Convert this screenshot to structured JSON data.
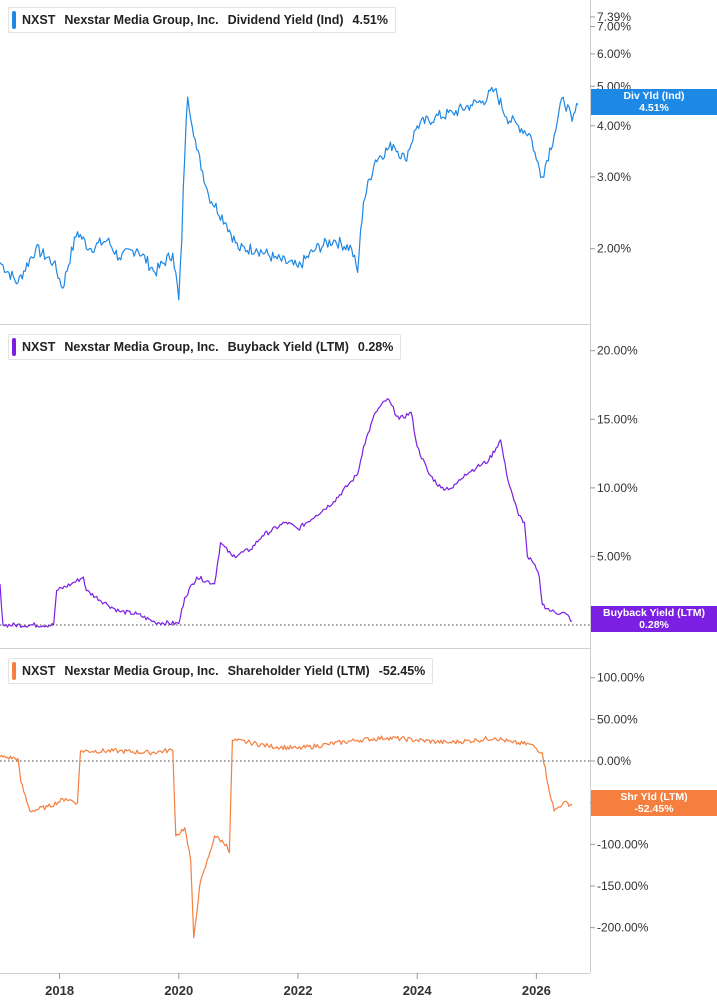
{
  "panels": [
    {
      "ticker": "NXST",
      "company": "Nexstar Media Group, Inc.",
      "metric": "Dividend Yield (Ind)",
      "value": "4.51%",
      "tag_line1": "Div Yld (Ind)",
      "tag_line2": "4.51%",
      "color": "#1e88e5"
    },
    {
      "ticker": "NXST",
      "company": "Nexstar Media Group, Inc.",
      "metric": "Buyback Yield (LTM)",
      "value": "0.28%",
      "tag_line1": "Buyback Yield (LTM)",
      "tag_line2": "0.28%",
      "color": "#7b1fe3"
    },
    {
      "ticker": "NXST",
      "company": "Nexstar Media Group, Inc.",
      "metric": "Shareholder Yield (LTM)",
      "value": "-52.45%",
      "tag_line1": "Shr Yld (LTM)",
      "tag_line2": "-52.45%",
      "color": "#f47f3e"
    }
  ],
  "chart_data": [
    {
      "type": "line",
      "scale": "log",
      "ylim": [
        1.4,
        7.6
      ],
      "yticks": [
        {
          "v": 7.39,
          "label": "7.39%"
        },
        {
          "v": 7.0,
          "label": "7.00%"
        },
        {
          "v": 6.0,
          "label": "6.00%"
        },
        {
          "v": 5.0,
          "label": "5.00%"
        },
        {
          "v": 4.0,
          "label": "4.00%"
        },
        {
          "v": 3.0,
          "label": "3.00%"
        },
        {
          "v": 2.0,
          "label": "2.00%"
        }
      ],
      "series": [
        {
          "values": [
            [
              2017.0,
              1.85
            ],
            [
              2017.3,
              1.65
            ],
            [
              2017.6,
              2.0
            ],
            [
              2017.9,
              1.85
            ],
            [
              2018.05,
              1.6
            ],
            [
              2018.3,
              2.2
            ],
            [
              2018.5,
              2.0
            ],
            [
              2018.8,
              2.1
            ],
            [
              2019.0,
              1.9
            ],
            [
              2019.3,
              2.0
            ],
            [
              2019.6,
              1.75
            ],
            [
              2019.9,
              1.95
            ],
            [
              2020.0,
              1.5
            ],
            [
              2020.05,
              2.1
            ],
            [
              2020.15,
              4.7
            ],
            [
              2020.3,
              3.5
            ],
            [
              2020.5,
              2.7
            ],
            [
              2020.8,
              2.3
            ],
            [
              2021.0,
              2.0
            ],
            [
              2021.3,
              2.0
            ],
            [
              2021.6,
              1.9
            ],
            [
              2022.0,
              1.8
            ],
            [
              2022.3,
              2.0
            ],
            [
              2022.6,
              2.1
            ],
            [
              2022.9,
              2.0
            ],
            [
              2023.0,
              1.75
            ],
            [
              2023.1,
              2.6
            ],
            [
              2023.3,
              3.3
            ],
            [
              2023.6,
              3.6
            ],
            [
              2023.8,
              3.3
            ],
            [
              2024.0,
              4.0
            ],
            [
              2024.3,
              4.2
            ],
            [
              2024.6,
              4.3
            ],
            [
              2024.9,
              4.5
            ],
            [
              2025.1,
              4.6
            ],
            [
              2025.3,
              4.9
            ],
            [
              2025.5,
              4.2
            ],
            [
              2025.7,
              4.0
            ],
            [
              2025.9,
              3.8
            ],
            [
              2026.0,
              3.3
            ],
            [
              2026.1,
              3.0
            ],
            [
              2026.3,
              3.8
            ],
            [
              2026.45,
              4.7
            ],
            [
              2026.6,
              4.1
            ],
            [
              2026.7,
              4.51
            ]
          ]
        }
      ]
    },
    {
      "type": "line",
      "scale": "linear",
      "ylim": [
        -0.8,
        21.0
      ],
      "yticks": [
        {
          "v": 20,
          "label": "20.00%"
        },
        {
          "v": 15,
          "label": "15.00%"
        },
        {
          "v": 10,
          "label": "10.00%"
        },
        {
          "v": 5,
          "label": "5.00%"
        }
      ],
      "series": [
        {
          "values": [
            [
              2017.0,
              3.0
            ],
            [
              2017.05,
              0.0
            ],
            [
              2017.9,
              0.0
            ],
            [
              2017.95,
              2.5
            ],
            [
              2018.2,
              3.0
            ],
            [
              2018.4,
              3.5
            ],
            [
              2018.45,
              2.5
            ],
            [
              2018.8,
              1.5
            ],
            [
              2019.0,
              1.0
            ],
            [
              2019.3,
              0.8
            ],
            [
              2019.6,
              0.2
            ],
            [
              2020.0,
              0.1
            ],
            [
              2020.1,
              2.0
            ],
            [
              2020.3,
              3.5
            ],
            [
              2020.6,
              3.0
            ],
            [
              2020.7,
              6.0
            ],
            [
              2020.9,
              5.0
            ],
            [
              2021.2,
              5.5
            ],
            [
              2021.4,
              6.5
            ],
            [
              2021.8,
              7.5
            ],
            [
              2022.0,
              7.0
            ],
            [
              2022.3,
              8.0
            ],
            [
              2022.6,
              9.0
            ],
            [
              2022.9,
              10.5
            ],
            [
              2023.0,
              11.0
            ],
            [
              2023.1,
              13.0
            ],
            [
              2023.3,
              15.5
            ],
            [
              2023.5,
              16.5
            ],
            [
              2023.7,
              15.0
            ],
            [
              2023.9,
              15.5
            ],
            [
              2024.0,
              13.0
            ],
            [
              2024.2,
              11.0
            ],
            [
              2024.4,
              10.0
            ],
            [
              2024.6,
              10.0
            ],
            [
              2024.8,
              11.0
            ],
            [
              2025.0,
              11.5
            ],
            [
              2025.2,
              12.0
            ],
            [
              2025.4,
              13.5
            ],
            [
              2025.5,
              11.0
            ],
            [
              2025.6,
              9.5
            ],
            [
              2025.7,
              8.0
            ],
            [
              2025.8,
              7.5
            ],
            [
              2025.85,
              5.0
            ],
            [
              2025.95,
              4.5
            ],
            [
              2026.05,
              3.5
            ],
            [
              2026.1,
              1.5
            ],
            [
              2026.25,
              1.0
            ],
            [
              2026.5,
              0.8
            ],
            [
              2026.6,
              0.28
            ]
          ]
        }
      ]
    },
    {
      "type": "line",
      "scale": "linear",
      "ylim": [
        -240,
        120
      ],
      "yticks": [
        {
          "v": 100,
          "label": "100.00%"
        },
        {
          "v": 50,
          "label": "50.00%"
        },
        {
          "v": 0,
          "label": "0.00%"
        },
        {
          "v": -50,
          "label": "-50.00%"
        },
        {
          "v": -100,
          "label": "-100.00%"
        },
        {
          "v": -150,
          "label": "-150.00%"
        },
        {
          "v": -200,
          "label": "-200.00%"
        }
      ],
      "series": [
        {
          "values": [
            [
              2017.0,
              5.0
            ],
            [
              2017.3,
              3.0
            ],
            [
              2017.35,
              -25.0
            ],
            [
              2017.5,
              -60.0
            ],
            [
              2017.8,
              -55.0
            ],
            [
              2018.1,
              -45.0
            ],
            [
              2018.3,
              -50.0
            ],
            [
              2018.35,
              12.0
            ],
            [
              2019.0,
              12.0
            ],
            [
              2019.5,
              10.0
            ],
            [
              2019.9,
              13.0
            ],
            [
              2019.95,
              -90.0
            ],
            [
              2020.1,
              -80.0
            ],
            [
              2020.2,
              -120.0
            ],
            [
              2020.25,
              -212.0
            ],
            [
              2020.35,
              -150.0
            ],
            [
              2020.5,
              -115.0
            ],
            [
              2020.6,
              -90.0
            ],
            [
              2020.8,
              -100.0
            ],
            [
              2020.85,
              -110.0
            ],
            [
              2020.9,
              25.0
            ],
            [
              2021.2,
              22.0
            ],
            [
              2021.5,
              18.0
            ],
            [
              2022.0,
              15.0
            ],
            [
              2022.5,
              20.0
            ],
            [
              2023.0,
              25.0
            ],
            [
              2023.5,
              28.0
            ],
            [
              2024.0,
              25.0
            ],
            [
              2024.5,
              22.0
            ],
            [
              2025.0,
              25.0
            ],
            [
              2025.3,
              28.0
            ],
            [
              2025.6,
              22.0
            ],
            [
              2025.9,
              20.0
            ],
            [
              2026.1,
              10.0
            ],
            [
              2026.2,
              -30.0
            ],
            [
              2026.3,
              -60.0
            ],
            [
              2026.45,
              -50.0
            ],
            [
              2026.6,
              -52.45
            ]
          ]
        }
      ]
    }
  ],
  "xaxis": {
    "xlim": [
      2017.0,
      2026.9
    ],
    "ticks": [
      {
        "v": 2018,
        "label": "2018"
      },
      {
        "v": 2020,
        "label": "2020"
      },
      {
        "v": 2022,
        "label": "2022"
      },
      {
        "v": 2024,
        "label": "2024"
      },
      {
        "v": 2026,
        "label": "2026"
      }
    ]
  },
  "reference_lines": [
    {
      "panel": 1,
      "v": 0
    },
    {
      "panel": 2,
      "v": 0
    }
  ]
}
